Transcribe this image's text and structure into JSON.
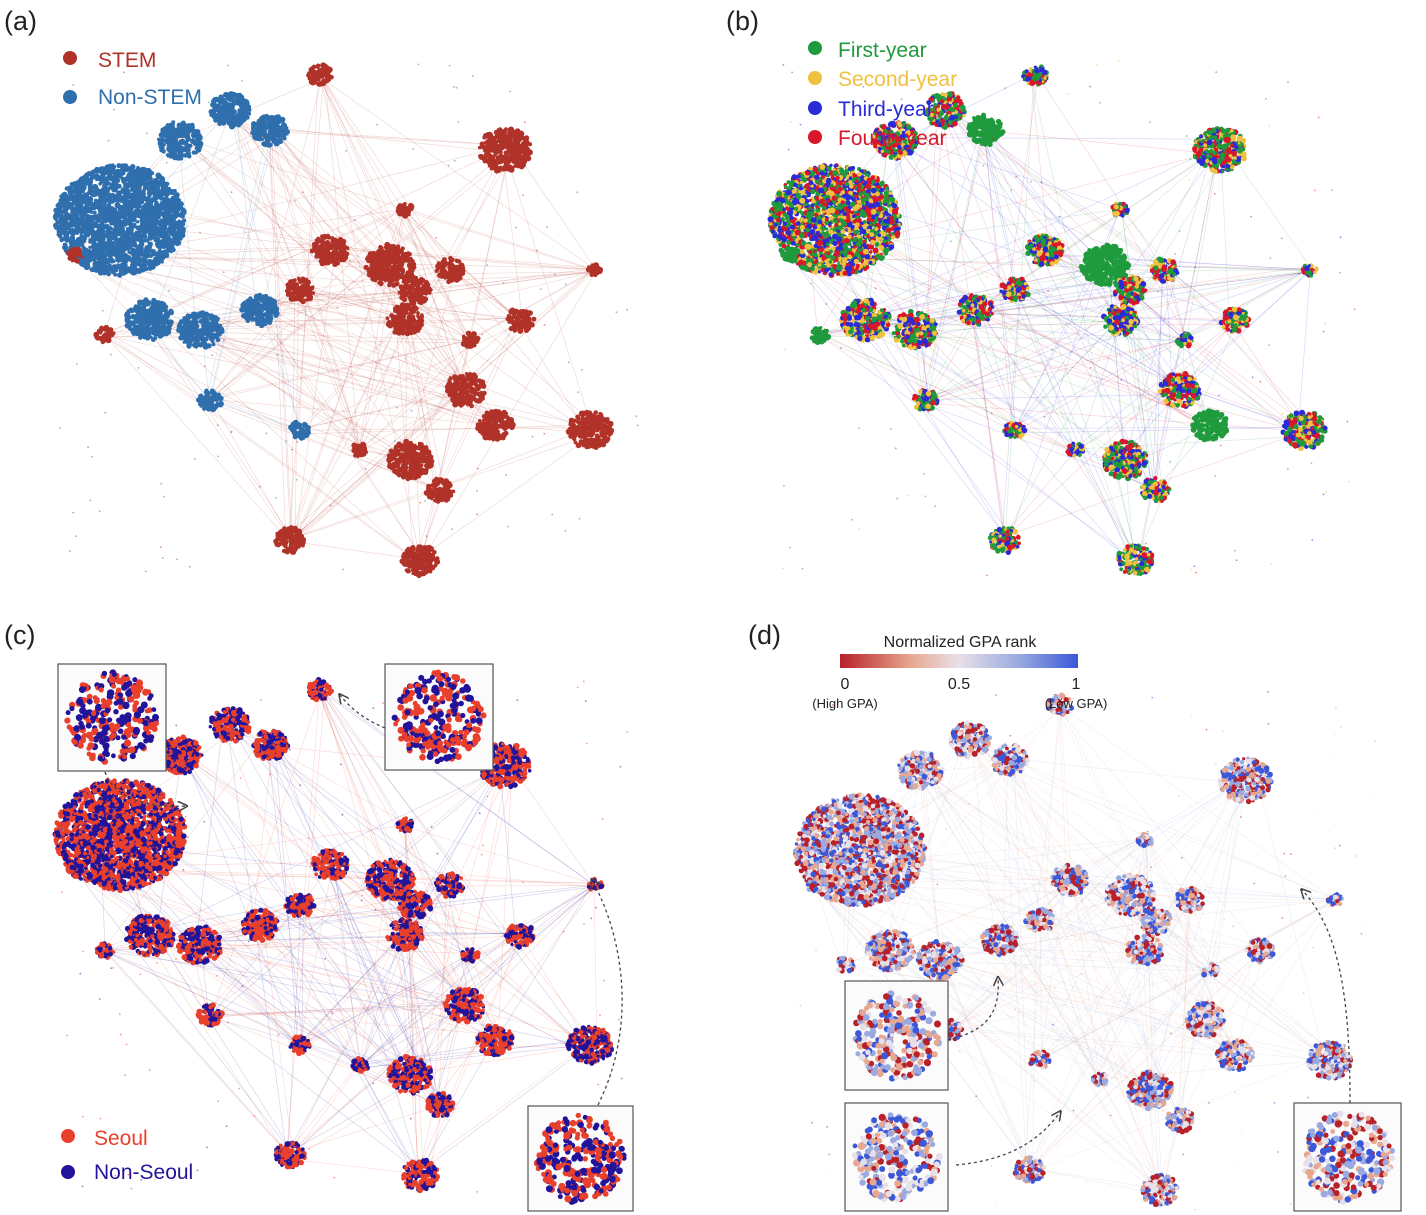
{
  "figure": {
    "panels": [
      {
        "id": "a",
        "label": "(a)",
        "legend": [
          {
            "text": "STEM",
            "color": "#b03228"
          },
          {
            "text": "Non-STEM",
            "color": "#2f6fad"
          }
        ]
      },
      {
        "id": "b",
        "label": "(b)",
        "legend": [
          {
            "text": "First-year",
            "color": "#1f9a3c"
          },
          {
            "text": "Second-year",
            "color": "#f0c040"
          },
          {
            "text": "Third-year",
            "color": "#2a2ad6"
          },
          {
            "text": "Fourth-year",
            "color": "#d8182a"
          }
        ]
      },
      {
        "id": "c",
        "label": "(c)",
        "legend": [
          {
            "text": "Seoul",
            "color": "#e8402c"
          },
          {
            "text": "Non-Seoul",
            "color": "#22149a"
          }
        ]
      },
      {
        "id": "d",
        "label": "(d)",
        "colorbar": {
          "title": "Normalized GPA rank",
          "ticks": [
            "0",
            "0.5",
            "1"
          ],
          "end_labels": [
            "(High GPA)",
            "(Low GPA)"
          ],
          "colors": [
            "#b8202a",
            "#e8a890",
            "#e8e0e8",
            "#9aaae0",
            "#3a58d8"
          ]
        }
      }
    ]
  }
}
